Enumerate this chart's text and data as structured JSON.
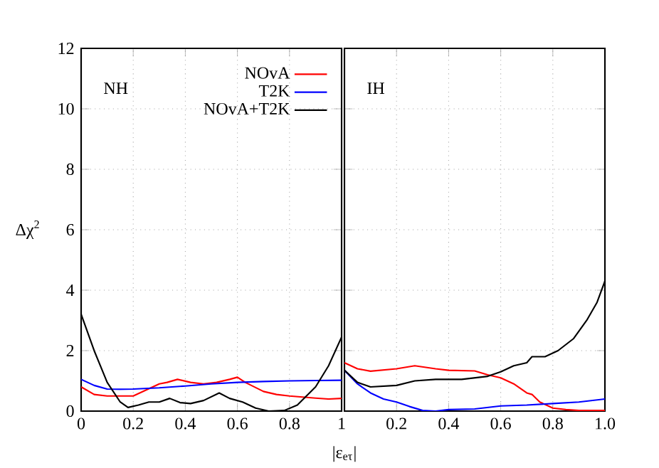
{
  "chart_data": [
    {
      "type": "line",
      "ylabel": "Δχ$^{2}$",
      "annotations": [
        "NH"
      ],
      "grid": true,
      "legend": "top right",
      "marker": "none",
      "line_style": "solid",
      "xlim": [
        0,
        1
      ],
      "ylim": [
        0,
        12
      ],
      "xticks": [
        0,
        0.2,
        0.4,
        0.6,
        0.8,
        1
      ],
      "yticks": [
        0,
        2,
        4,
        6,
        8,
        10,
        12
      ],
      "series": [
        {
          "name": "NOvA",
          "color": "#ff0000",
          "x": [
            0,
            0.05,
            0.1,
            0.15,
            0.2,
            0.25,
            0.3,
            0.33,
            0.37,
            0.42,
            0.47,
            0.52,
            0.57,
            0.6,
            0.63,
            0.7,
            0.75,
            0.8,
            0.9,
            0.95,
            1
          ],
          "values": [
            0.8,
            0.55,
            0.5,
            0.5,
            0.5,
            0.7,
            0.9,
            0.95,
            1.05,
            0.95,
            0.9,
            0.95,
            1.05,
            1.12,
            0.95,
            0.65,
            0.55,
            0.5,
            0.43,
            0.4,
            0.42
          ]
        },
        {
          "name": "T2K",
          "color": "#0000ff",
          "x": [
            0,
            0.05,
            0.1,
            0.15,
            0.2,
            0.3,
            0.4,
            0.5,
            0.6,
            0.7,
            0.8,
            0.9,
            1
          ],
          "values": [
            1.05,
            0.85,
            0.73,
            0.72,
            0.73,
            0.77,
            0.83,
            0.9,
            0.95,
            0.98,
            1.0,
            1.01,
            1.02
          ]
        },
        {
          "name": "NOvA+T2K",
          "color": "#000000",
          "x": [
            0,
            0.05,
            0.1,
            0.15,
            0.18,
            0.22,
            0.26,
            0.3,
            0.34,
            0.38,
            0.42,
            0.47,
            0.53,
            0.57,
            0.62,
            0.67,
            0.72,
            0.78,
            0.83,
            0.9,
            0.95,
            1
          ],
          "values": [
            3.2,
            2.0,
            0.95,
            0.3,
            0.12,
            0.2,
            0.3,
            0.3,
            0.42,
            0.28,
            0.25,
            0.35,
            0.6,
            0.42,
            0.3,
            0.1,
            0.0,
            0.02,
            0.2,
            0.8,
            1.5,
            2.45
          ]
        }
      ]
    },
    {
      "type": "line",
      "xlabel": "|ε$_{eτ}$|",
      "annotations": [
        "IH"
      ],
      "grid": true,
      "marker": "none",
      "line_style": "solid",
      "tick_labels": "x",
      "xlim": [
        0,
        1
      ],
      "ylim": [
        0,
        12
      ],
      "xticks": [
        0.2,
        0.4,
        0.6,
        0.8,
        {
          "value": 1,
          "label": "1.0"
        }
      ],
      "yticks": [
        2,
        4,
        6,
        8,
        10
      ],
      "series": [
        {
          "color": "#ff0000",
          "x": [
            0,
            0.05,
            0.1,
            0.2,
            0.27,
            0.35,
            0.4,
            0.5,
            0.55,
            0.6,
            0.65,
            0.7,
            0.72,
            0.75,
            0.8,
            0.85,
            0.9,
            1
          ],
          "values": [
            1.6,
            1.4,
            1.32,
            1.4,
            1.5,
            1.4,
            1.35,
            1.33,
            1.2,
            1.1,
            0.9,
            0.6,
            0.55,
            0.3,
            0.1,
            0.05,
            0.02,
            0.02
          ]
        },
        {
          "color": "#0000ff",
          "x": [
            0,
            0.05,
            0.1,
            0.15,
            0.2,
            0.25,
            0.3,
            0.35,
            0.4,
            0.5,
            0.6,
            0.7,
            0.8,
            0.9,
            1
          ],
          "values": [
            1.35,
            0.9,
            0.6,
            0.4,
            0.3,
            0.15,
            0.02,
            0.0,
            0.05,
            0.07,
            0.17,
            0.2,
            0.25,
            0.3,
            0.4
          ]
        },
        {
          "color": "#000000",
          "x": [
            0,
            0.05,
            0.1,
            0.2,
            0.27,
            0.35,
            0.45,
            0.55,
            0.6,
            0.65,
            0.7,
            0.72,
            0.77,
            0.82,
            0.88,
            0.93,
            0.97,
            1
          ],
          "values": [
            1.35,
            0.95,
            0.8,
            0.85,
            1.0,
            1.05,
            1.05,
            1.15,
            1.3,
            1.5,
            1.6,
            1.8,
            1.8,
            2.0,
            2.4,
            3.0,
            3.6,
            4.3
          ]
        }
      ]
    }
  ]
}
